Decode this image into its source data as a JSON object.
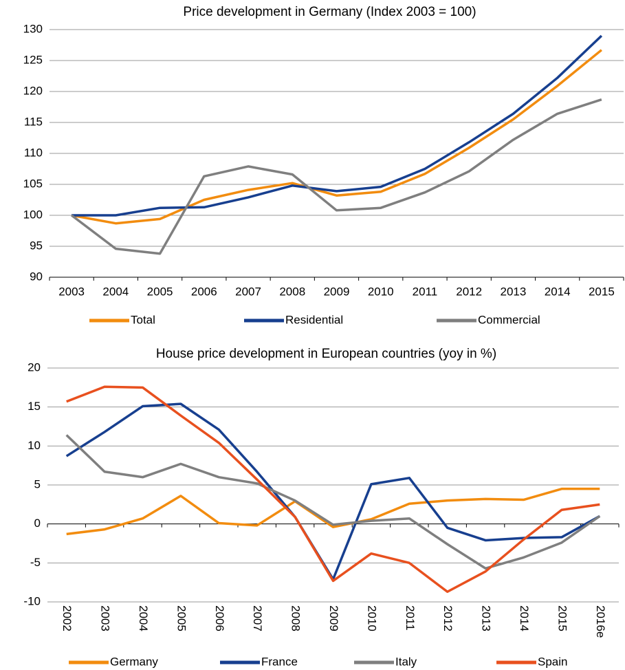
{
  "chart_data": [
    {
      "type": "line",
      "title": "Price development in Germany (Index 2003 = 100)",
      "categories": [
        "2003",
        "2004",
        "2005",
        "2006",
        "2007",
        "2008",
        "2009",
        "2010",
        "2011",
        "2012",
        "2013",
        "2014",
        "2015"
      ],
      "series": [
        {
          "name": "Total",
          "color": "#f28c0f",
          "values": [
            100,
            98.7,
            99.4,
            102.5,
            104.1,
            105.2,
            103.2,
            103.8,
            106.7,
            110.9,
            115.5,
            120.9,
            126.7
          ]
        },
        {
          "name": "Residential",
          "color": "#173f8f",
          "values": [
            100,
            100,
            101.2,
            101.3,
            102.9,
            104.8,
            103.9,
            104.6,
            107.5,
            111.8,
            116.4,
            122.2,
            129.0
          ]
        },
        {
          "name": "Commercial",
          "color": "#7f7f7f",
          "values": [
            100,
            94.6,
            93.8,
            106.3,
            107.9,
            106.6,
            100.8,
            101.2,
            103.7,
            107.1,
            112.2,
            116.4,
            118.7
          ]
        }
      ],
      "ylim": [
        90,
        130
      ],
      "yticks": [
        90,
        95,
        100,
        105,
        110,
        115,
        120,
        125,
        130
      ],
      "grid": true,
      "legend": "bottom"
    },
    {
      "type": "line",
      "title": "House price development in European countries (yoy in %)",
      "categories": [
        "2002",
        "2003",
        "2004",
        "2005",
        "2006",
        "2007",
        "2008",
        "2009",
        "2010",
        "2011",
        "2012",
        "2013",
        "2014",
        "2015",
        "2016e"
      ],
      "series": [
        {
          "name": "Germany",
          "color": "#f28c0f",
          "values": [
            -1.3,
            -0.7,
            0.7,
            3.6,
            0.1,
            -0.2,
            2.9,
            -0.4,
            0.6,
            2.6,
            3.0,
            3.2,
            3.1,
            4.5,
            4.5
          ]
        },
        {
          "name": "France",
          "color": "#173f8f",
          "values": [
            8.7,
            11.8,
            15.1,
            15.4,
            12.1,
            6.7,
            0.9,
            -7.1,
            5.1,
            5.9,
            -0.5,
            -2.1,
            -1.8,
            -1.7,
            1.0
          ]
        },
        {
          "name": "Italy",
          "color": "#7f7f7f",
          "values": [
            11.4,
            6.7,
            6.0,
            7.7,
            6.0,
            5.2,
            3.0,
            -0.1,
            0.4,
            0.7,
            -2.6,
            -5.7,
            -4.3,
            -2.4,
            1.0
          ]
        },
        {
          "name": "Spain",
          "color": "#e8501e",
          "values": [
            15.7,
            17.6,
            17.5,
            13.9,
            10.4,
            5.7,
            0.9,
            -7.3,
            -3.8,
            -5.0,
            -8.7,
            -6.1,
            -2.0,
            1.8,
            2.5
          ]
        }
      ],
      "ylim": [
        -10,
        20
      ],
      "yticks": [
        -10,
        -5,
        0,
        5,
        10,
        15,
        20
      ],
      "grid": true,
      "legend": "bottom",
      "x_labels_rotated": true
    }
  ]
}
